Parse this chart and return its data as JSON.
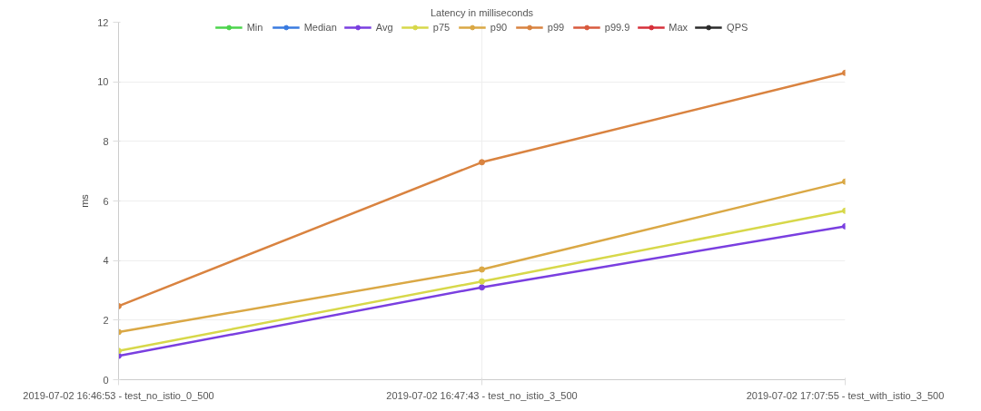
{
  "chart_data": {
    "type": "line",
    "title": "Latency in milliseconds",
    "ylabel": "ms",
    "categories": [
      "2019-07-02 16:46:53 - test_no_istio_0_500",
      "2019-07-02 16:47:43 - test_no_istio_3_500",
      "2019-07-02 17:07:55 - test_with_istio_3_500"
    ],
    "series": [
      {
        "name": "Min",
        "color": "#4cd44c",
        "values": [
          null,
          null,
          null
        ]
      },
      {
        "name": "Median",
        "color": "#3a7be0",
        "values": [
          null,
          null,
          null
        ]
      },
      {
        "name": "Avg",
        "color": "#7a3fe0",
        "values": [
          0.8,
          3.1,
          5.15
        ]
      },
      {
        "name": "p75",
        "color": "#d7d84a",
        "values": [
          0.97,
          3.3,
          5.67
        ]
      },
      {
        "name": "p90",
        "color": "#daa845",
        "values": [
          1.6,
          3.7,
          6.65
        ]
      },
      {
        "name": "p99",
        "color": "#d98340",
        "values": [
          2.47,
          7.3,
          10.3
        ]
      },
      {
        "name": "p99.9",
        "color": "#d85a3e",
        "values": [
          null,
          null,
          null
        ]
      },
      {
        "name": "Max",
        "color": "#d6303a",
        "values": [
          null,
          null,
          null
        ]
      },
      {
        "name": "QPS",
        "color": "#2b2b2b",
        "values": [
          null,
          null,
          null
        ]
      }
    ],
    "ylim": [
      0,
      12
    ],
    "yticks": [
      0,
      2,
      4,
      6,
      8,
      10,
      12
    ],
    "grid": true,
    "legend": "top",
    "marker": "circle",
    "line_style": "solid"
  }
}
